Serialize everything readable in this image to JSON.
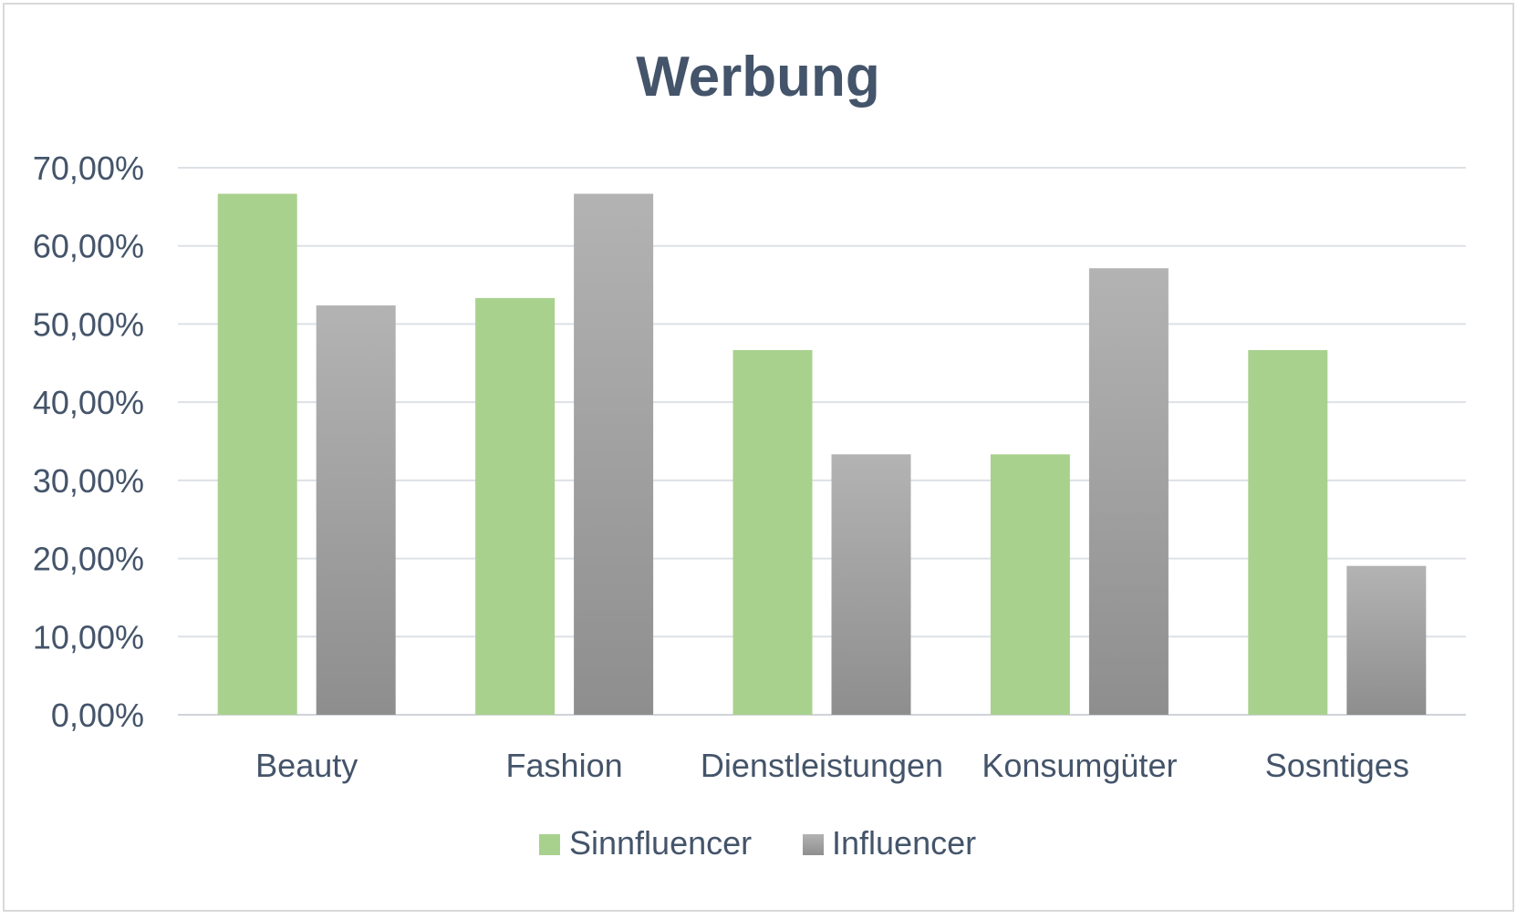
{
  "chart_data": {
    "type": "bar",
    "title": "Werbung",
    "xlabel": "",
    "ylabel": "",
    "categories": [
      "Beauty",
      "Fashion",
      "Dienstleistungen",
      "Konsumgüter",
      "Sosntiges"
    ],
    "series": [
      {
        "name": "Sinnfluencer",
        "values": [
          0.6667,
          0.5333,
          0.4667,
          0.3333,
          0.4667
        ],
        "color": "#a9d18e"
      },
      {
        "name": "Influencer",
        "values": [
          0.5238,
          0.6667,
          0.3333,
          0.5714,
          0.1905
        ],
        "color": "#a5a5a5"
      }
    ],
    "ylim": [
      0,
      0.7
    ],
    "yticks": [
      "0,00%",
      "10,00%",
      "20,00%",
      "30,00%",
      "40,00%",
      "50,00%",
      "60,00%",
      "70,00%"
    ],
    "grid": true,
    "legend_position": "bottom",
    "colors": {
      "title": "#44546a",
      "text": "#44546a",
      "gridline": "#d9dde3",
      "frame": "#d9d9d9"
    }
  }
}
